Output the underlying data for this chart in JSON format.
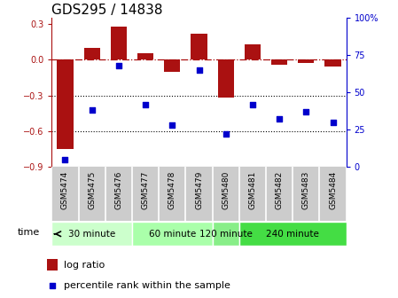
{
  "title": "GDS295 / 14838",
  "samples": [
    "GSM5474",
    "GSM5475",
    "GSM5476",
    "GSM5477",
    "GSM5478",
    "GSM5479",
    "GSM5480",
    "GSM5481",
    "GSM5482",
    "GSM5483",
    "GSM5484"
  ],
  "log_ratio": [
    -0.75,
    0.1,
    0.28,
    0.05,
    -0.1,
    0.22,
    -0.32,
    0.13,
    -0.04,
    -0.03,
    -0.06
  ],
  "percentile_rank": [
    5,
    38,
    68,
    42,
    28,
    65,
    22,
    42,
    32,
    37,
    30
  ],
  "groups": [
    {
      "label": "30 minute",
      "start": 0,
      "end": 3
    },
    {
      "label": "60 minute",
      "start": 3,
      "end": 6
    },
    {
      "label": "120 minute",
      "start": 6,
      "end": 7
    },
    {
      "label": "240 minute",
      "start": 7,
      "end": 11
    }
  ],
  "group_colors": [
    "#ccffcc",
    "#aaffaa",
    "#88ee88",
    "#44dd44"
  ],
  "bar_color": "#aa1111",
  "dot_color": "#0000cc",
  "ylim_left": [
    -0.9,
    0.35
  ],
  "ylim_right": [
    0,
    100
  ],
  "dotted_lines": [
    -0.3,
    -0.6
  ],
  "background_color": "#ffffff",
  "cell_bg": "#cccccc",
  "title_fontsize": 11,
  "tick_fontsize": 7,
  "label_fontsize": 6.5,
  "group_fontsize": 7.5,
  "legend_fontsize": 8
}
